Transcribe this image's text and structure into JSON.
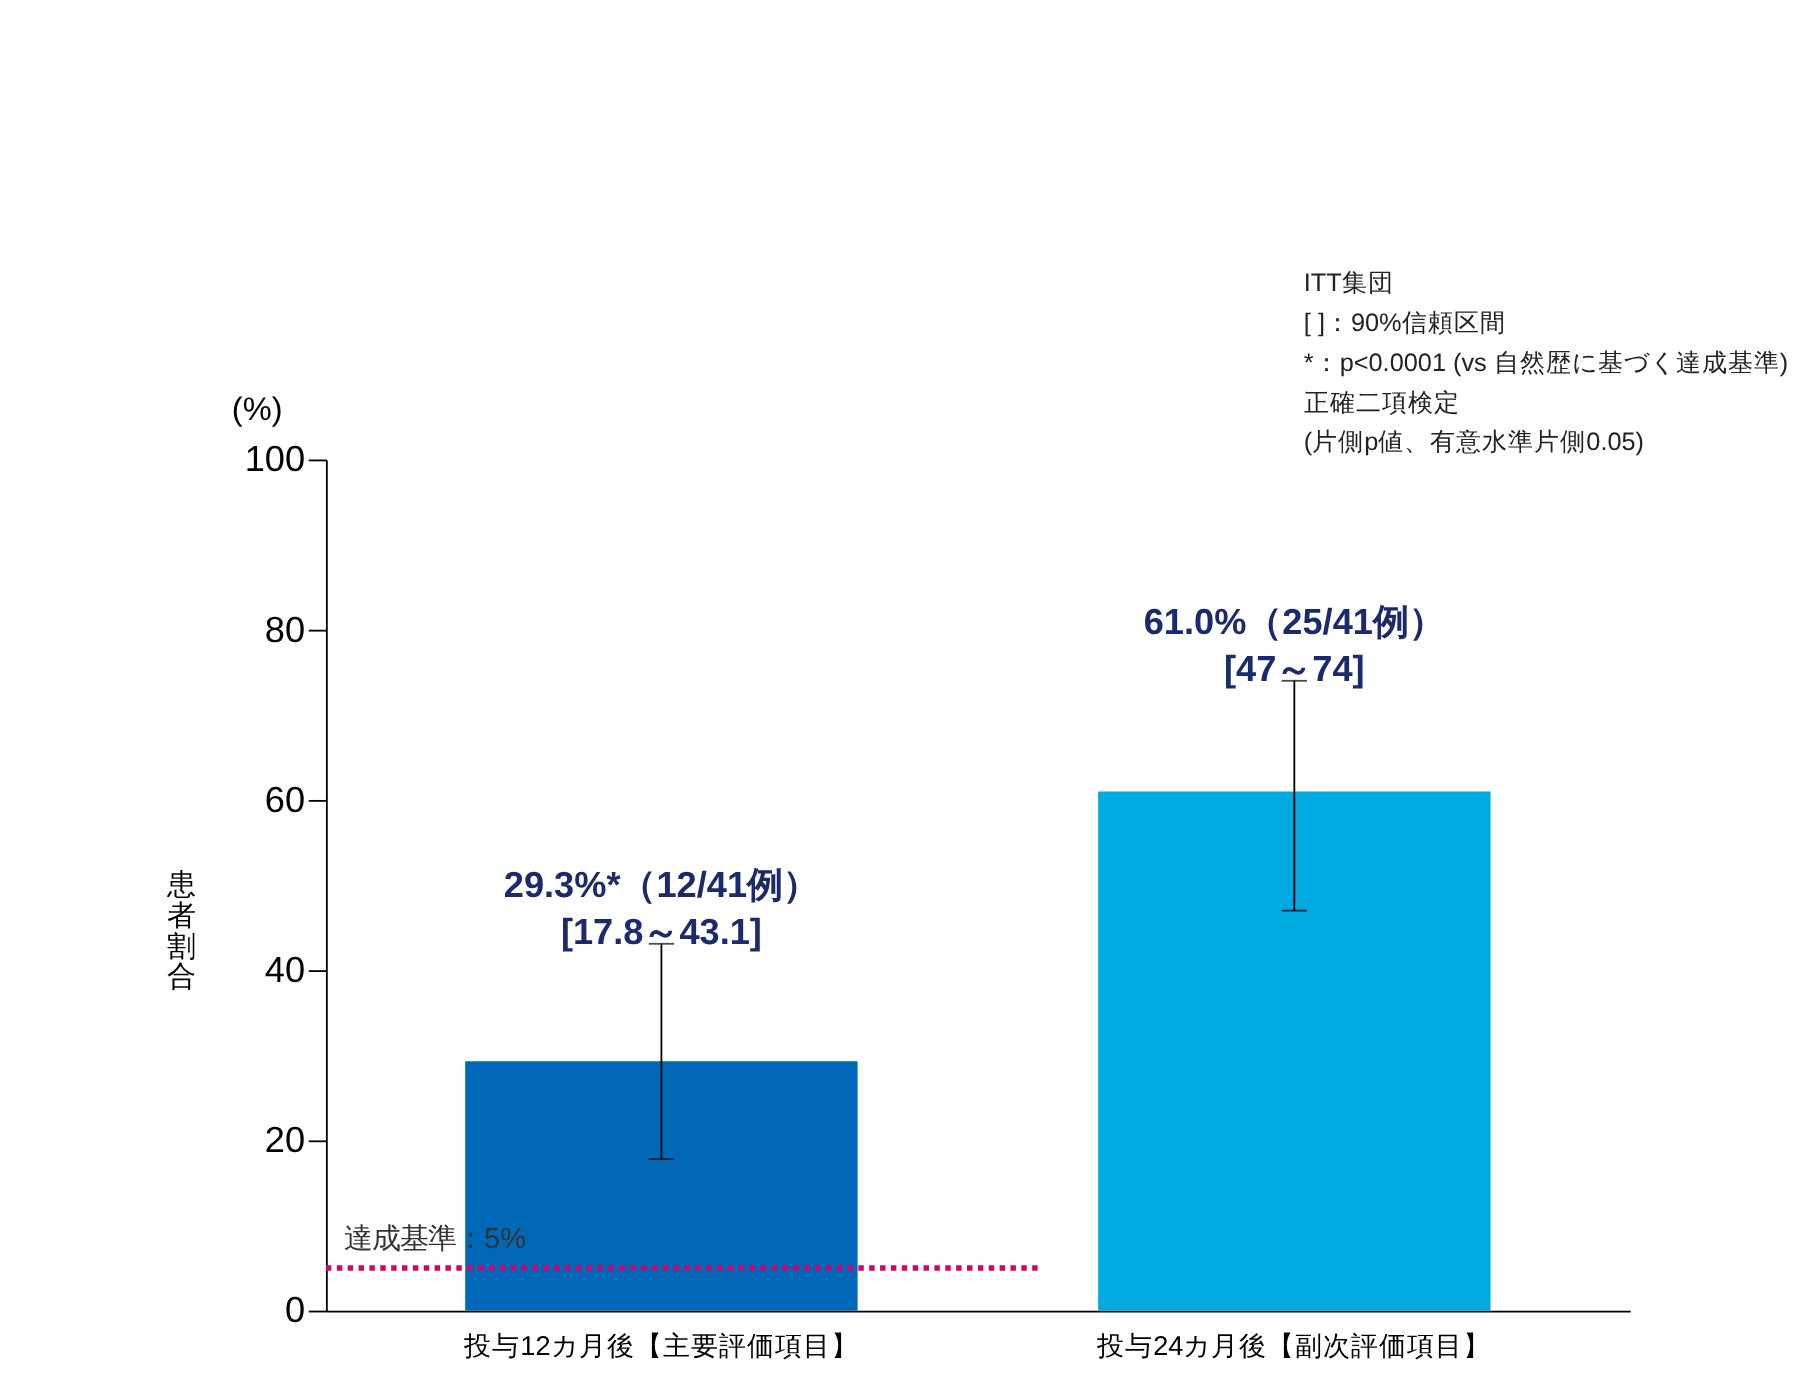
{
  "chart_data": {
    "type": "bar",
    "categories": [
      "投与12カ月後【主要評価項目】",
      "投与24カ月後【副次評価項目】"
    ],
    "values": [
      29.3,
      61.0
    ],
    "colors": [
      "#0068b7",
      "#00a9e0"
    ],
    "errors": [
      [
        17.8,
        43.1
      ],
      [
        47,
        74
      ]
    ],
    "value_labels": [
      "29.3%*（12/41例）\n[17.8～43.1]",
      "61.0%（25/41例）\n[47～74]"
    ],
    "ylabel": "患者割合",
    "ylim": [
      0,
      100
    ],
    "yticks": [
      0,
      20,
      40,
      60,
      80,
      100
    ],
    "ref_lines": [
      {
        "axis": "y",
        "value": 5,
        "label": "達成基準：5%",
        "color": "#d6006f",
        "line_style": "dotted"
      }
    ],
    "annotations": [
      "(%)",
      "ITT集団",
      "[ ]：90%信頼区間",
      "*：p<0.0001 (vs 自然歴に基づく達成基準)",
      "正確二項検定",
      "(片側p値、有意水準片側0.05)"
    ],
    "grid": false
  }
}
